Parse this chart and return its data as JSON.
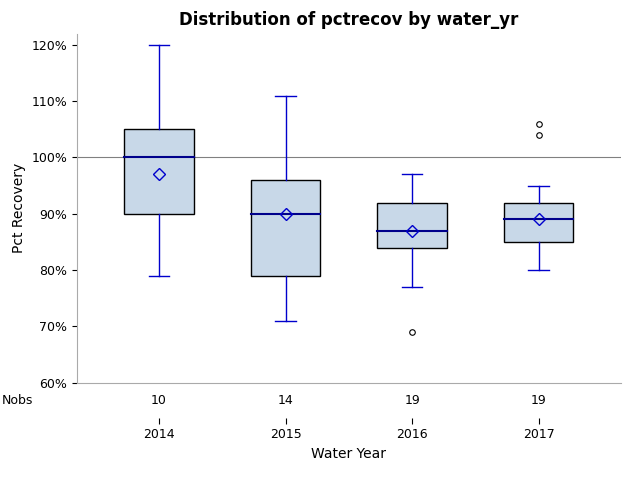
{
  "title": "Distribution of pctrecov by water_yr",
  "xlabel": "Water Year",
  "ylabel": "Pct Recovery",
  "categories": [
    "2014",
    "2015",
    "2016",
    "2017"
  ],
  "nobs": [
    10,
    14,
    19,
    19
  ],
  "box_data": {
    "2014": {
      "q1": 90,
      "median": 100,
      "q3": 105,
      "whisker_low": 79,
      "whisker_high": 120,
      "mean": 97,
      "outliers": []
    },
    "2015": {
      "q1": 79,
      "median": 90,
      "q3": 96,
      "whisker_low": 71,
      "whisker_high": 111,
      "mean": 90,
      "outliers": []
    },
    "2016": {
      "q1": 84,
      "median": 87,
      "q3": 92,
      "whisker_low": 77,
      "whisker_high": 97,
      "mean": 87,
      "outliers": [
        69
      ]
    },
    "2017": {
      "q1": 85,
      "median": 89,
      "q3": 92,
      "whisker_low": 80,
      "whisker_high": 95,
      "mean": 89,
      "outliers": [
        104,
        106
      ]
    }
  },
  "ylim": [
    60,
    122
  ],
  "yticks": [
    60,
    70,
    80,
    90,
    100,
    110,
    120
  ],
  "ytick_labels": [
    "60%",
    "70%",
    "80%",
    "90%",
    "100%",
    "110%",
    "120%"
  ],
  "hline_y": 100,
  "box_facecolor": "#c8d8e8",
  "box_edgecolor": "#000000",
  "whisker_color": "#0000cc",
  "median_color": "#00008b",
  "mean_marker": "D",
  "mean_color": "#0000cc",
  "outlier_color": "#000000",
  "box_width": 0.55,
  "bg_color": "#ffffff",
  "ref_line_color": "#808080",
  "spine_color": "#aaaaaa",
  "title_fontsize": 12,
  "label_fontsize": 10,
  "tick_fontsize": 9
}
